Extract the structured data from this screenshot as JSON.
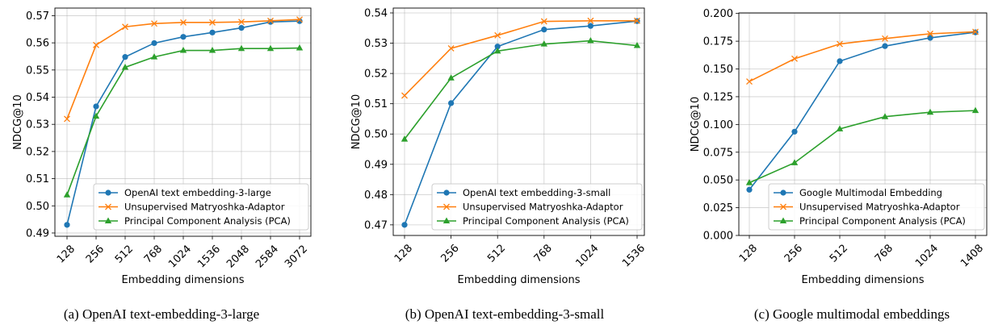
{
  "chart_data": [
    {
      "type": "line",
      "caption": "(a) OpenAI text-embedding-3-large",
      "xlabel": "Embedding dimensions",
      "ylabel": "NDCG@10",
      "categories": [
        "128",
        "256",
        "512",
        "768",
        "1024",
        "1536",
        "2048",
        "2584",
        "3072"
      ],
      "yticks": [
        "0.49",
        "0.50",
        "0.51",
        "0.52",
        "0.53",
        "0.54",
        "0.55",
        "0.56",
        "0.57"
      ],
      "ylim": [
        0.4888,
        0.5728
      ],
      "grid": true,
      "legend": "lower-right",
      "series": [
        {
          "name": "OpenAI text embedding-3-large",
          "color": "#1f77b4",
          "marker": "circle",
          "values": [
            0.493,
            0.5366,
            0.5548,
            0.5599,
            0.5622,
            0.5638,
            0.5655,
            0.5677,
            0.568
          ]
        },
        {
          "name": "Unsupervised Matryoshka-Adaptor",
          "color": "#ff7f0e",
          "marker": "x",
          "values": [
            0.532,
            0.5592,
            0.5659,
            0.5671,
            0.5675,
            0.5675,
            0.5677,
            0.5681,
            0.5686
          ]
        },
        {
          "name": "Principal Component Analysis (PCA)",
          "color": "#2ca02c",
          "marker": "triangle",
          "values": [
            0.504,
            0.533,
            0.551,
            0.5548,
            0.5572,
            0.5572,
            0.5579,
            0.5579,
            0.5581
          ]
        }
      ]
    },
    {
      "type": "line",
      "caption": "(b) OpenAI text-embedding-3-small",
      "xlabel": "Embedding dimensions",
      "ylabel": "NDCG@10",
      "categories": [
        "128",
        "256",
        "512",
        "768",
        "1024",
        "1536"
      ],
      "yticks": [
        "0.47",
        "0.48",
        "0.49",
        "0.50",
        "0.51",
        "0.52",
        "0.53",
        "0.54"
      ],
      "ylim": [
        0.4665,
        0.5416
      ],
      "grid": true,
      "legend": "lower-right",
      "series": [
        {
          "name": "OpenAI text embedding-3-small",
          "color": "#1f77b4",
          "marker": "circle",
          "values": [
            0.47,
            0.5102,
            0.5289,
            0.5345,
            0.5357,
            0.5373
          ]
        },
        {
          "name": "Unsupervised Matryoshka-Adaptor",
          "color": "#ff7f0e",
          "marker": "x",
          "values": [
            0.5127,
            0.5283,
            0.5326,
            0.5372,
            0.5374,
            0.5374
          ]
        },
        {
          "name": "Principal Component Analysis (PCA)",
          "color": "#2ca02c",
          "marker": "triangle",
          "values": [
            0.4983,
            0.5185,
            0.5274,
            0.5297,
            0.5308,
            0.5292
          ]
        }
      ]
    },
    {
      "type": "line",
      "caption": "(c) Google multimodal embeddings",
      "xlabel": "Embedding dimensions",
      "ylabel": "NDCG@10",
      "categories": [
        "128",
        "256",
        "512",
        "768",
        "1024",
        "1408"
      ],
      "yticks": [
        "0.000",
        "0.025",
        "0.050",
        "0.075",
        "0.100",
        "0.125",
        "0.150",
        "0.175",
        "0.200"
      ],
      "ylim": [
        0.0,
        0.2005
      ],
      "grid": true,
      "legend": "lower-right",
      "series": [
        {
          "name": "Google Multimodal Embedding",
          "color": "#1f77b4",
          "marker": "circle",
          "values": [
            0.0412,
            0.0935,
            0.157,
            0.1706,
            0.178,
            0.183
          ]
        },
        {
          "name": "Unsupervised Matryoshka-Adaptor",
          "color": "#ff7f0e",
          "marker": "x",
          "values": [
            0.1387,
            0.1592,
            0.1725,
            0.1774,
            0.1817,
            0.1835
          ]
        },
        {
          "name": "Principal Component Analysis (PCA)",
          "color": "#2ca02c",
          "marker": "triangle",
          "values": [
            0.0475,
            0.0655,
            0.096,
            0.107,
            0.111,
            0.1125
          ]
        }
      ]
    }
  ]
}
